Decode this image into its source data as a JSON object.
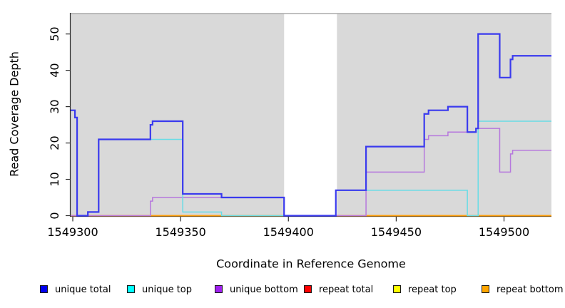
{
  "chart_data": {
    "type": "line",
    "subtype": "step-after-coverage-plot",
    "title": "",
    "xlabel": "Coordinate in Reference Genome",
    "ylabel": "Read Coverage Depth",
    "xlim": [
      1549299,
      1549522
    ],
    "ylim": [
      0,
      55.7
    ],
    "x_ticks": [
      1549300,
      1549350,
      1549400,
      1549450,
      1549500
    ],
    "x_tick_labels": [
      "1549300",
      "1549350",
      "1549400",
      "1549450",
      "1549500"
    ],
    "y_ticks": [
      0,
      10,
      20,
      30,
      40,
      50
    ],
    "y_tick_labels": [
      "0",
      "10",
      "20",
      "30",
      "40",
      "50"
    ],
    "grid": false,
    "plot_bg_color": "#d9d9d9",
    "gap_region": [
      1549398,
      1549422.5
    ],
    "legend_position": "bottom",
    "series": [
      {
        "name": "unique total",
        "color": "#3a3aee",
        "legend_color": "#0000ee",
        "width": 2.2,
        "points": [
          [
            1549299,
            29
          ],
          [
            1549301,
            27
          ],
          [
            1549302,
            0
          ],
          [
            1549307,
            1
          ],
          [
            1549312,
            21
          ],
          [
            1549336,
            25
          ],
          [
            1549337,
            26
          ],
          [
            1549351,
            6
          ],
          [
            1549369,
            5
          ],
          [
            1549398,
            0
          ],
          [
            1549422,
            7
          ],
          [
            1549436,
            19
          ],
          [
            1549463,
            28
          ],
          [
            1549465,
            29
          ],
          [
            1549474,
            30
          ],
          [
            1549483,
            23
          ],
          [
            1549487,
            24
          ],
          [
            1549488,
            50
          ],
          [
            1549498,
            38
          ],
          [
            1549503,
            43
          ],
          [
            1549504,
            44
          ]
        ]
      },
      {
        "name": "unique top",
        "color": "#68dce6",
        "legend_color": "#00ffff",
        "width": 1.5,
        "points": [
          [
            1549299,
            29
          ],
          [
            1549301,
            27
          ],
          [
            1549302,
            0
          ],
          [
            1549307,
            1
          ],
          [
            1549312,
            21
          ],
          [
            1549351,
            1
          ],
          [
            1549369,
            0
          ],
          [
            1549422,
            7
          ],
          [
            1549483,
            0
          ],
          [
            1549488,
            26
          ]
        ]
      },
      {
        "name": "unique bottom",
        "color": "#b678dd",
        "legend_color": "#a020f0",
        "width": 1.5,
        "points": [
          [
            1549299,
            0
          ],
          [
            1549336,
            4
          ],
          [
            1549337,
            5
          ],
          [
            1549398,
            0
          ],
          [
            1549436,
            12
          ],
          [
            1549463,
            21
          ],
          [
            1549465,
            22
          ],
          [
            1549474,
            23
          ],
          [
            1549487,
            24
          ],
          [
            1549498,
            12
          ],
          [
            1549503,
            17
          ],
          [
            1549504,
            18
          ]
        ]
      },
      {
        "name": "repeat total",
        "color": "#e05c74",
        "legend_color": "#ff0000",
        "width": 1.5,
        "points": [
          [
            1549299,
            0
          ]
        ]
      },
      {
        "name": "repeat top",
        "color": "#ffe600",
        "legend_color": "#ffff00",
        "width": 1.5,
        "points": [
          [
            1549299,
            0
          ]
        ]
      },
      {
        "name": "repeat bottom",
        "color": "#ff9d0a",
        "legend_color": "#ffa500",
        "width": 2,
        "points": [
          [
            1549299,
            0
          ]
        ]
      }
    ]
  }
}
